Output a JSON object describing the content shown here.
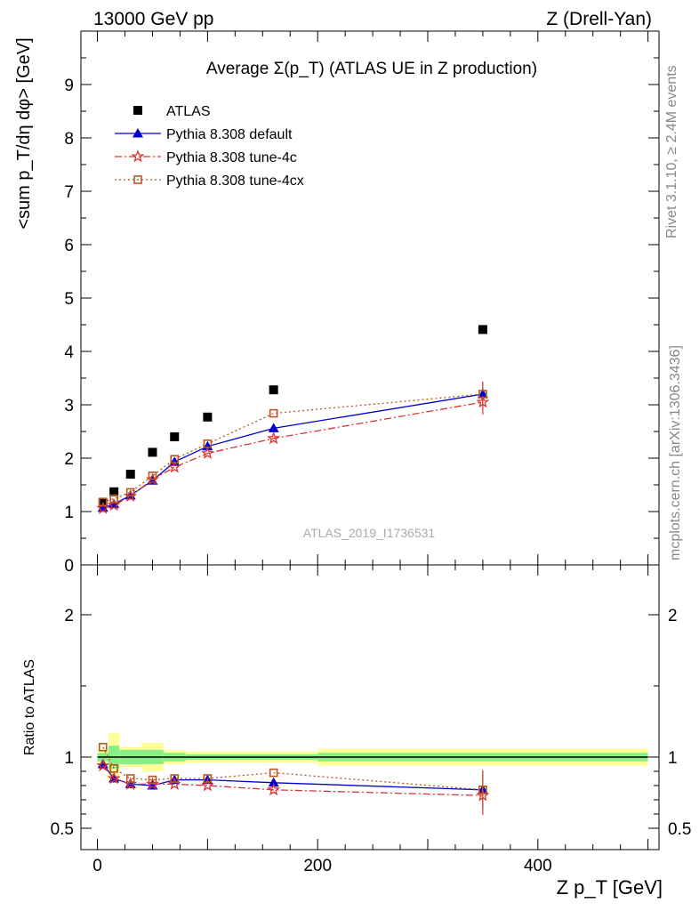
{
  "header": {
    "left": "13000 GeV pp",
    "right": "Z (Drell-Yan)"
  },
  "side": {
    "rivet": "Rivet 3.1.10, ≥ 2.4M events",
    "mcplots": "mcplots.cern.ch [arXiv:1306.3436]"
  },
  "watermark": "ATLAS_2019_I1736531",
  "chart_data": {
    "type": "scatter",
    "title": "Average Σ(p_T) (ATLAS UE in Z production)",
    "xlabel": "Z p_T [GeV]",
    "ylabel": "<sum p_T/dη dφ> [GeV]",
    "ratio_ylabel": "Ratio to ATLAS",
    "xlim": [
      -15,
      510
    ],
    "ylim": [
      0,
      10
    ],
    "ratio_ylim": [
      0.35,
      2.35
    ],
    "x_ticks": [
      "0",
      "200",
      "400"
    ],
    "y_ticks": [
      "0",
      "1",
      "2",
      "3",
      "4",
      "5",
      "6",
      "7",
      "8",
      "9"
    ],
    "ratio_ticks": [
      "0.5",
      "1",
      "2"
    ],
    "legend_position": "top-left",
    "x": [
      5,
      15,
      30,
      50,
      70,
      100,
      160,
      350
    ],
    "series": [
      {
        "name": "ATLAS",
        "color": "#000000",
        "marker": "square",
        "values": [
          1.16,
          1.37,
          1.7,
          2.11,
          2.4,
          2.77,
          3.28,
          4.41
        ]
      },
      {
        "name": "Pythia 8.308 default",
        "color": "#0000cc",
        "marker": "triangle",
        "values": [
          1.07,
          1.14,
          1.3,
          1.58,
          1.93,
          2.22,
          2.56,
          3.2
        ]
      },
      {
        "name": "Pythia 8.308 tune-4c",
        "color": "#dd3333",
        "marker": "star",
        "values": [
          1.06,
          1.12,
          1.29,
          1.6,
          1.83,
          2.09,
          2.37,
          3.05
        ]
      },
      {
        "name": "Pythia 8.308 tune-4cx",
        "color": "#bb5522",
        "marker": "open-square",
        "values": [
          1.18,
          1.24,
          1.36,
          1.67,
          1.98,
          2.27,
          2.84,
          3.2
        ]
      }
    ],
    "ratio": [
      {
        "color": "#0000cc",
        "values": [
          0.95,
          0.85,
          0.81,
          0.8,
          0.84,
          0.84,
          0.82,
          0.77
        ]
      },
      {
        "color": "#dd3333",
        "values": [
          0.94,
          0.85,
          0.81,
          0.81,
          0.81,
          0.8,
          0.77,
          0.73
        ]
      },
      {
        "color": "#bb5522",
        "values": [
          1.07,
          0.92,
          0.85,
          0.84,
          0.85,
          0.85,
          0.89,
          0.77
        ]
      }
    ],
    "band_edges": [
      0,
      10,
      20,
      40,
      60,
      80,
      120,
      200,
      500
    ],
    "band_inner": [
      0.03,
      0.08,
      0.05,
      0.05,
      0.03,
      0.02,
      0.02,
      0.03
    ],
    "band_outer": [
      0.06,
      0.17,
      0.07,
      0.1,
      0.05,
      0.04,
      0.04,
      0.06
    ]
  }
}
